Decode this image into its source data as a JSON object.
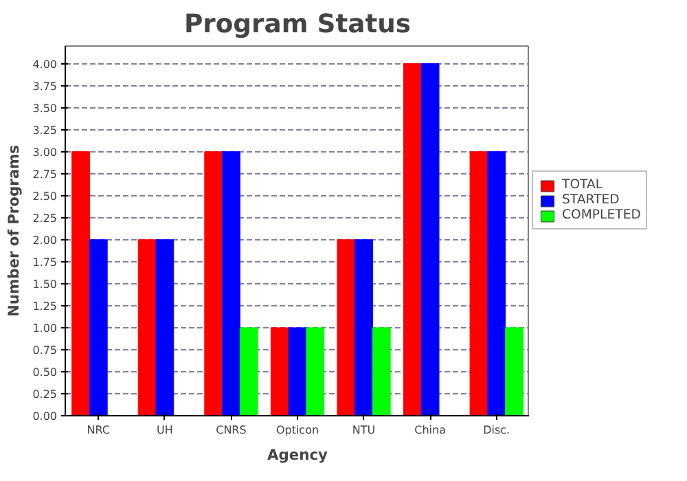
{
  "chart_data": {
    "type": "bar",
    "title": "Program Status",
    "xlabel": "Agency",
    "ylabel": "Number of Programs",
    "categories": [
      "NRC",
      "UH",
      "CNRS",
      "Opticon",
      "NTU",
      "China",
      "Disc."
    ],
    "series": [
      {
        "name": "TOTAL",
        "color": "#ff0000",
        "values": [
          3,
          2,
          3,
          1,
          2,
          4,
          3
        ]
      },
      {
        "name": "STARTED",
        "color": "#0000ff",
        "values": [
          2,
          2,
          3,
          1,
          2,
          4,
          3
        ]
      },
      {
        "name": "COMPLETED",
        "color": "#00ff00",
        "values": [
          0,
          0,
          1,
          1,
          1,
          0,
          1
        ]
      }
    ],
    "ylim": [
      0,
      4.2
    ],
    "yticks": [
      {
        "value": 0,
        "label": "0.00"
      },
      {
        "value": 0.25,
        "label": "0.25"
      },
      {
        "value": 0.5,
        "label": "0.50"
      },
      {
        "value": 0.75,
        "label": "0.75"
      },
      {
        "value": 1,
        "label": "1.00"
      },
      {
        "value": 1.25,
        "label": "1.25"
      },
      {
        "value": 1.5,
        "label": "1.50"
      },
      {
        "value": 1.75,
        "label": "1.75"
      },
      {
        "value": 2,
        "label": "2.00"
      },
      {
        "value": 2.25,
        "label": "2.25"
      },
      {
        "value": 2.5,
        "label": "2.50"
      },
      {
        "value": 2.75,
        "label": "2.75"
      },
      {
        "value": 3,
        "label": "3.00"
      },
      {
        "value": 3.25,
        "label": "3.25"
      },
      {
        "value": 3.5,
        "label": "3.50"
      },
      {
        "value": 3.75,
        "label": "3.75"
      },
      {
        "value": 4,
        "label": "4.00"
      }
    ],
    "grid": "y",
    "legend": "right"
  }
}
